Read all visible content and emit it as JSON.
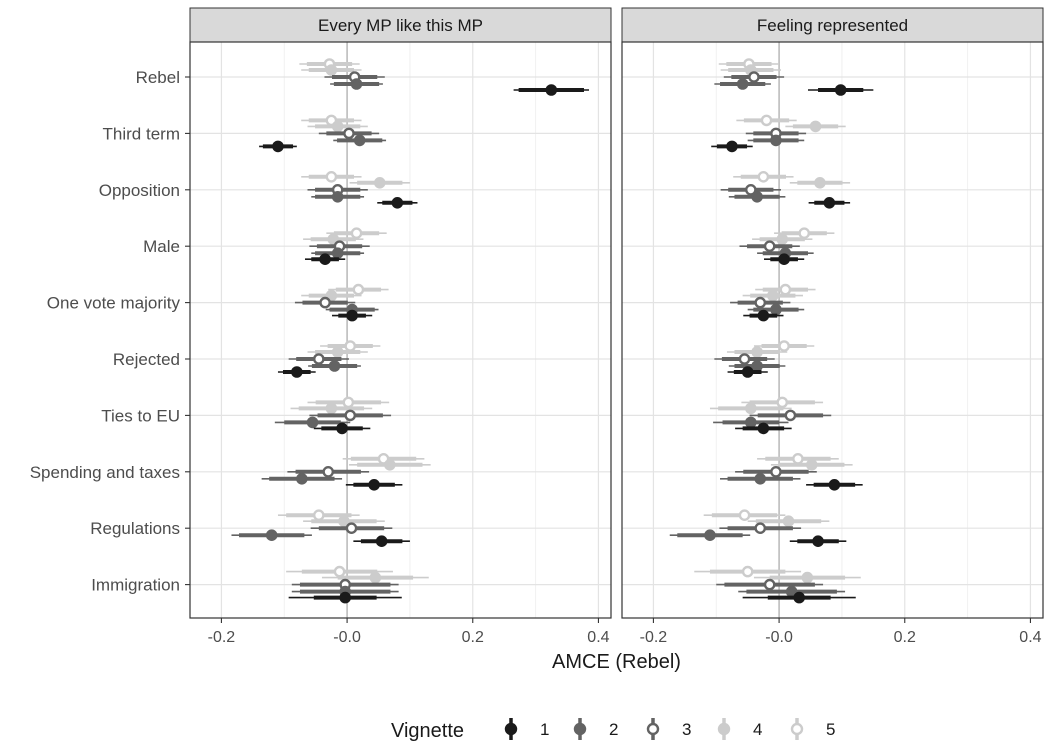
{
  "chart_data": {
    "type": "scatter",
    "subtype": "dot-and-whisker (coefficient plot), faceted",
    "xlabel": "AMCE (Rebel)",
    "xlim": [
      -0.25,
      0.42
    ],
    "x_ticks": [
      "-0.2",
      "-0.0",
      "0.2",
      "0.4"
    ],
    "x_tick_values": [
      -0.2,
      0.0,
      0.2,
      0.4
    ],
    "grid": true,
    "legend": {
      "title": "Vignette",
      "position": "bottom",
      "items": [
        {
          "key": "1",
          "label": "1",
          "color": "#1a1a1a",
          "fill": "#1a1a1a"
        },
        {
          "key": "2",
          "label": "2",
          "color": "#636363",
          "fill": "#636363"
        },
        {
          "key": "3",
          "label": "3",
          "color": "#636363",
          "fill": "#ffffff"
        },
        {
          "key": "4",
          "label": "4",
          "color": "#cccccc",
          "fill": "#cccccc"
        },
        {
          "key": "5",
          "label": "5",
          "color": "#cccccc",
          "fill": "#ffffff"
        }
      ]
    },
    "categories": [
      "Rebel",
      "Third term",
      "Opposition",
      "Male",
      "One vote majority",
      "Rejected",
      "Ties to EU",
      "Spending and taxes",
      "Regulations",
      "Immigration"
    ],
    "facets": [
      {
        "title": "Every MP like this MP",
        "series": [
          {
            "vignette": "1",
            "estimates": [
              0.325,
              -0.11,
              0.08,
              -0.035,
              0.008,
              -0.08,
              -0.008,
              0.043,
              0.055,
              -0.003
            ],
            "ci_inner": [
              0.052,
              0.024,
              0.024,
              0.022,
              0.022,
              0.022,
              0.033,
              0.033,
              0.033,
              0.05
            ],
            "ci_outer": [
              0.06,
              0.03,
              0.032,
              0.032,
              0.032,
              0.03,
              0.045,
              0.045,
              0.045,
              0.09
            ]
          },
          {
            "vignette": "2",
            "estimates": [
              0.015,
              0.02,
              -0.015,
              -0.015,
              0.008,
              -0.02,
              -0.055,
              -0.072,
              -0.12,
              -0.003
            ],
            "ci_inner": [
              0.036,
              0.036,
              0.036,
              0.036,
              0.036,
              0.036,
              0.045,
              0.052,
              0.052,
              0.072
            ],
            "ci_outer": [
              0.042,
              0.042,
              0.042,
              0.042,
              0.042,
              0.042,
              0.06,
              0.064,
              0.064,
              0.085
            ]
          },
          {
            "vignette": "3",
            "estimates": [
              0.012,
              0.003,
              -0.015,
              -0.012,
              -0.035,
              -0.045,
              0.005,
              -0.03,
              0.007,
              -0.003
            ],
            "ci_inner": [
              0.036,
              0.036,
              0.036,
              0.036,
              0.036,
              0.036,
              0.052,
              0.052,
              0.052,
              0.072
            ],
            "ci_outer": [
              0.048,
              0.048,
              0.048,
              0.048,
              0.048,
              0.048,
              0.065,
              0.065,
              0.065,
              0.085
            ]
          },
          {
            "vignette": "4",
            "estimates": [
              -0.025,
              -0.015,
              0.052,
              -0.022,
              -0.025,
              -0.015,
              -0.025,
              0.068,
              -0.005,
              0.045
            ],
            "ci_inner": [
              0.036,
              0.036,
              0.036,
              0.036,
              0.036,
              0.036,
              0.052,
              0.052,
              0.052,
              0.06
            ],
            "ci_outer": [
              0.048,
              0.048,
              0.048,
              0.048,
              0.048,
              0.048,
              0.065,
              0.065,
              0.065,
              0.085
            ]
          },
          {
            "vignette": "5",
            "estimates": [
              -0.028,
              -0.025,
              -0.025,
              0.015,
              0.018,
              0.005,
              0.002,
              0.058,
              -0.045,
              -0.012
            ],
            "ci_inner": [
              0.036,
              0.036,
              0.036,
              0.036,
              0.036,
              0.036,
              0.052,
              0.052,
              0.052,
              0.06
            ],
            "ci_outer": [
              0.048,
              0.048,
              0.048,
              0.048,
              0.048,
              0.048,
              0.065,
              0.065,
              0.065,
              0.085
            ]
          }
        ]
      },
      {
        "title": "Feeling represented",
        "series": [
          {
            "vignette": "1",
            "estimates": [
              0.098,
              -0.075,
              0.08,
              0.008,
              -0.025,
              -0.05,
              -0.025,
              0.088,
              0.062,
              0.032
            ],
            "ci_inner": [
              0.036,
              0.024,
              0.024,
              0.022,
              0.022,
              0.022,
              0.033,
              0.033,
              0.033,
              0.05
            ],
            "ci_outer": [
              0.052,
              0.033,
              0.033,
              0.032,
              0.032,
              0.032,
              0.045,
              0.045,
              0.045,
              0.09
            ]
          },
          {
            "vignette": "2",
            "estimates": [
              -0.058,
              -0.005,
              -0.035,
              0.01,
              -0.005,
              -0.035,
              -0.045,
              -0.03,
              -0.11,
              0.02
            ],
            "ci_inner": [
              0.036,
              0.036,
              0.036,
              0.036,
              0.036,
              0.036,
              0.045,
              0.052,
              0.052,
              0.072
            ],
            "ci_outer": [
              0.045,
              0.045,
              0.045,
              0.045,
              0.045,
              0.045,
              0.06,
              0.064,
              0.064,
              0.085
            ]
          },
          {
            "vignette": "3",
            "estimates": [
              -0.04,
              -0.005,
              -0.045,
              -0.015,
              -0.03,
              -0.055,
              0.018,
              -0.005,
              -0.03,
              -0.015
            ],
            "ci_inner": [
              0.036,
              0.036,
              0.036,
              0.036,
              0.036,
              0.036,
              0.052,
              0.052,
              0.052,
              0.072
            ],
            "ci_outer": [
              0.048,
              0.048,
              0.048,
              0.048,
              0.048,
              0.048,
              0.065,
              0.065,
              0.065,
              0.085
            ]
          },
          {
            "vignette": "4",
            "estimates": [
              -0.045,
              0.058,
              0.065,
              0.005,
              -0.01,
              -0.035,
              -0.045,
              0.052,
              0.015,
              0.045
            ],
            "ci_inner": [
              0.036,
              0.036,
              0.036,
              0.036,
              0.036,
              0.036,
              0.052,
              0.052,
              0.052,
              0.06
            ],
            "ci_outer": [
              0.048,
              0.048,
              0.048,
              0.048,
              0.048,
              0.048,
              0.065,
              0.065,
              0.065,
              0.085
            ]
          },
          {
            "vignette": "5",
            "estimates": [
              -0.048,
              -0.02,
              -0.025,
              0.04,
              0.01,
              0.008,
              0.005,
              0.03,
              -0.055,
              -0.05
            ],
            "ci_inner": [
              0.036,
              0.036,
              0.036,
              0.036,
              0.036,
              0.036,
              0.052,
              0.052,
              0.052,
              0.06
            ],
            "ci_outer": [
              0.048,
              0.048,
              0.048,
              0.048,
              0.048,
              0.048,
              0.065,
              0.065,
              0.065,
              0.085
            ]
          }
        ]
      }
    ]
  }
}
